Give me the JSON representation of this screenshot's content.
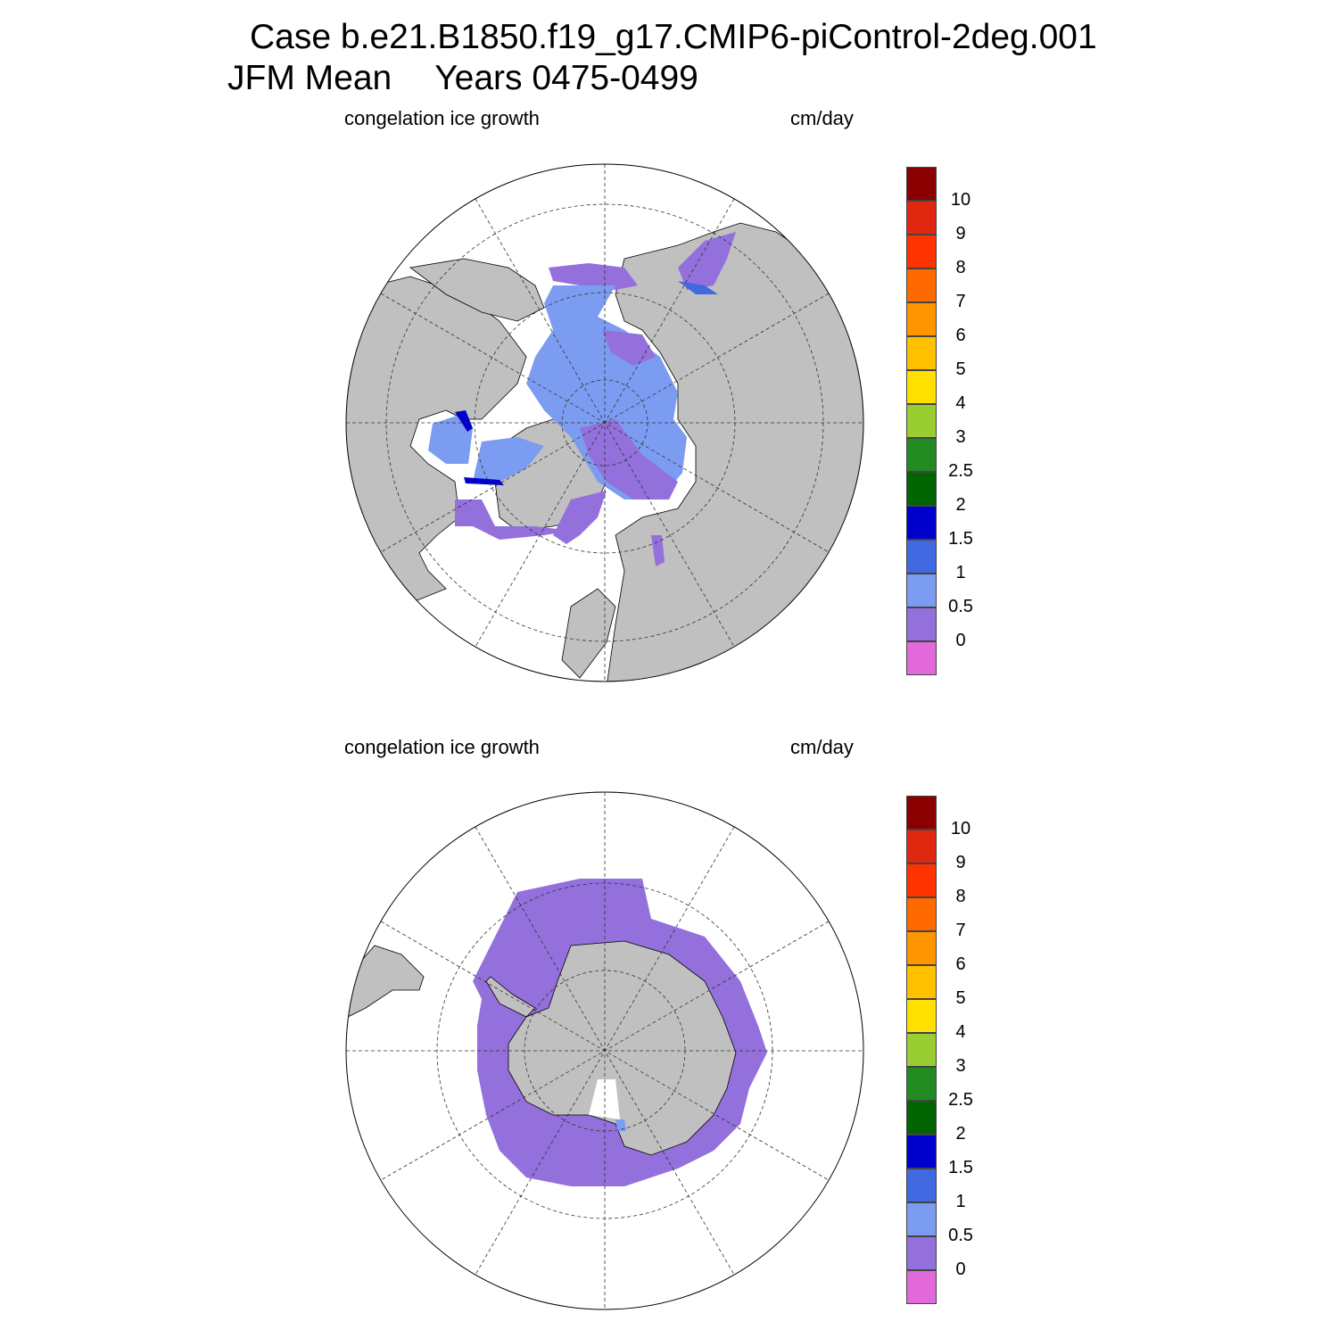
{
  "title": {
    "case_line": "Case b.e21.B1850.f19_g17.CMIP6-piControl-2deg.001",
    "season": "JFM Mean",
    "years": "Years 0475-0499"
  },
  "panels": [
    {
      "id": "north",
      "left_label": "congelation ice growth",
      "right_label": "cm/day",
      "hemisphere": "Northern"
    },
    {
      "id": "south",
      "left_label": "congelation ice growth",
      "right_label": "cm/day",
      "hemisphere": "Southern"
    }
  ],
  "colorbar": {
    "colors": [
      "#e169da",
      "#9370db",
      "#7b9cf0",
      "#4169e1",
      "#0000cd",
      "#006400",
      "#228b22",
      "#9acd32",
      "#ffe000",
      "#ffc000",
      "#ff9500",
      "#ff6a00",
      "#ff3300",
      "#e02810",
      "#8b0000"
    ],
    "labels": [
      "0",
      "0.5",
      "1",
      "1.5",
      "2",
      "2.5",
      "3",
      "4",
      "5",
      "6",
      "7",
      "8",
      "9",
      "10"
    ]
  },
  "map_colors": {
    "land": "#c0c0c0",
    "ocean": "#ffffff",
    "ice_low": "#9370db",
    "ice_mid": "#7b9cf0",
    "ice_high": "#4169e1",
    "ice_max": "#0000cd"
  }
}
